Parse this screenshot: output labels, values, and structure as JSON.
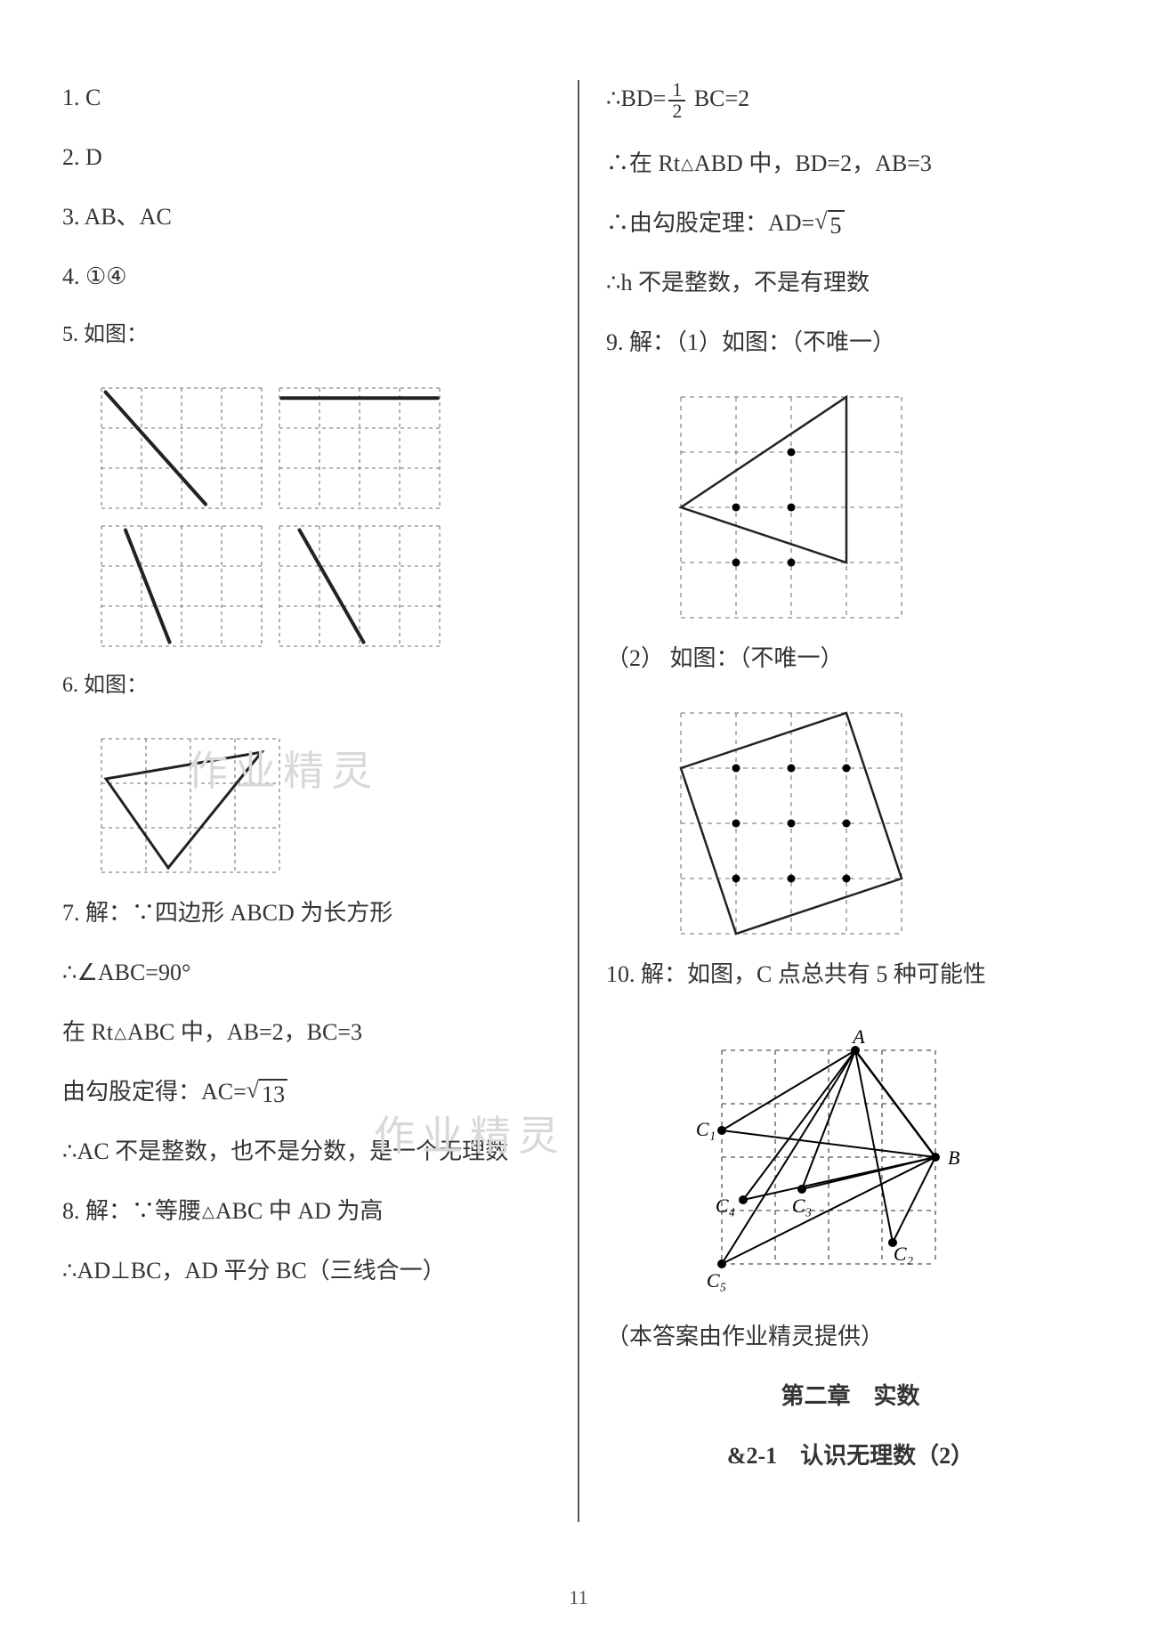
{
  "left": {
    "q1": "1.  C",
    "q2": "2.  D",
    "q3": "3.  AB、AC",
    "q4": "4.  ①④",
    "q5": "5.  如图：",
    "q6": "6.  如图：",
    "q7a": "7.  解：∵四边形 ABCD 为长方形",
    "q7b": "∴∠ABC=90°",
    "q7c_pre": "在 Rt",
    "q7c_post": "ABC 中，AB=2，BC=3",
    "q7d_pre": "由勾股定得：AC=",
    "q7d_sqrt": "13",
    "q7e": "∴AC 不是整数，也不是分数，是一个无理数",
    "q8a_pre": "8.  解：∵等腰",
    "q8a_post": "ABC 中 AD 为高",
    "q8b": "∴AD⊥BC，AD 平分 BC（三线合一）"
  },
  "right": {
    "r1_pre": "∴BD=",
    "r1_frac_num": "1",
    "r1_frac_den": "2",
    "r1_post": " BC=2",
    "r2_pre": "∴在 Rt",
    "r2_post": "ABD 中，BD=2，AB=3",
    "r3_pre": "∴由勾股定理：AD=",
    "r3_sqrt": "5",
    "r4": "∴h 不是整数，不是有理数",
    "q9a": "9.  解：（1）如图：（不唯一）",
    "q9b": "（2） 如图：（不唯一）",
    "q10": "10.  解：如图，C 点总共有 5 种可能性",
    "credit": "（本答案由作业精灵提供）",
    "chapter": "第二章　实数",
    "section": "&2-1　认识无理数（2）"
  },
  "page_number": "11",
  "colors": {
    "text": "#333333",
    "grid_dash": "#8a8a8a",
    "stroke": "#222222",
    "bg": "#ffffff",
    "watermark": "#d8d8d8"
  },
  "figures": {
    "fig5": {
      "cell": 45,
      "cols": 4,
      "rows": 3,
      "gap": 20,
      "panels": [
        {
          "line": [
            0.1,
            0.1,
            2.6,
            2.9
          ]
        },
        {
          "line": [
            0.05,
            0.25,
            3.95,
            0.25
          ]
        },
        {
          "line": [
            0.6,
            0.1,
            1.7,
            2.9
          ]
        },
        {
          "line": [
            0.5,
            0.1,
            2.1,
            2.9
          ]
        }
      ]
    },
    "fig6": {
      "cell": 50,
      "cols": 4,
      "rows": 3,
      "tri": [
        [
          0.1,
          0.9
        ],
        [
          3.6,
          0.3
        ],
        [
          1.5,
          2.9
        ]
      ]
    },
    "fig9a": {
      "cell": 62,
      "cols": 4,
      "rows": 4,
      "tri": [
        [
          0.0,
          2.0
        ],
        [
          3.0,
          0.0
        ],
        [
          3.0,
          3.0
        ]
      ],
      "dots": [
        [
          1,
          2
        ],
        [
          2,
          2
        ],
        [
          1,
          3
        ],
        [
          2,
          3
        ],
        [
          2,
          1
        ]
      ]
    },
    "fig9b": {
      "cell": 62,
      "cols": 4,
      "rows": 4,
      "quad": [
        [
          1,
          4
        ],
        [
          0,
          1
        ],
        [
          3,
          0
        ],
        [
          4,
          3
        ]
      ],
      "dots": [
        [
          1,
          1
        ],
        [
          2,
          1
        ],
        [
          3,
          1
        ],
        [
          1,
          2
        ],
        [
          2,
          2
        ],
        [
          3,
          2
        ],
        [
          1,
          3
        ],
        [
          2,
          3
        ],
        [
          3,
          3
        ]
      ]
    },
    "fig10": {
      "cell": 60,
      "cols": 4,
      "rows": 4,
      "A": [
        2.5,
        0
      ],
      "B": [
        4,
        2
      ],
      "Cs": [
        {
          "label": "C₁",
          "pt": [
            0,
            1.5
          ]
        },
        {
          "label": "C₂",
          "pt": [
            3.2,
            3.6
          ]
        },
        {
          "label": "C₃",
          "pt": [
            1.5,
            2.6
          ]
        },
        {
          "label": "C₄",
          "pt": [
            0.4,
            2.8
          ]
        },
        {
          "label": "C₅",
          "pt": [
            0,
            4
          ]
        }
      ]
    }
  }
}
